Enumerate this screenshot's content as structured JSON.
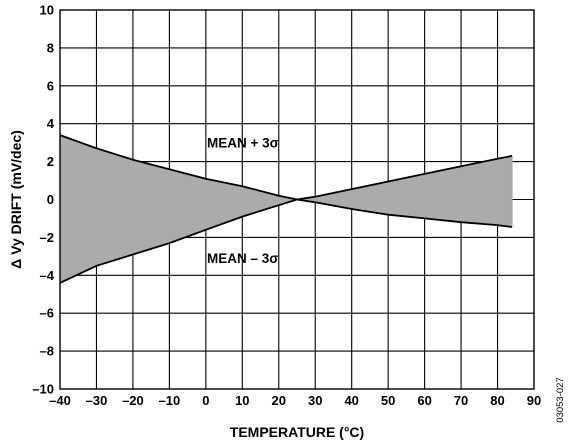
{
  "chart_data": {
    "type": "area",
    "xlabel": "TEMPERATURE (°C)",
    "ylabel": "Δ Vy DRIFT (mV/dec)",
    "xlim": [
      -40,
      90
    ],
    "ylim": [
      -10,
      10
    ],
    "xticks": [
      -40,
      -30,
      -20,
      -10,
      0,
      10,
      20,
      30,
      40,
      50,
      60,
      70,
      80,
      90
    ],
    "yticks": [
      -10,
      -8,
      -6,
      -4,
      -2,
      0,
      2,
      4,
      6,
      8,
      10
    ],
    "xtick_labels": [
      "–40",
      "–30",
      "–20",
      "–10",
      "0",
      "10",
      "20",
      "30",
      "40",
      "50",
      "60",
      "70",
      "80",
      "90"
    ],
    "ytick_labels": [
      "–10",
      "–8",
      "–6",
      "–4",
      "–2",
      "0",
      "2",
      "4",
      "6",
      "8",
      "10"
    ],
    "grid": true,
    "fill_color": "#ababab",
    "series": [
      {
        "name": "MEAN + 3σ",
        "x": [
          -40,
          -30,
          -20,
          -10,
          0,
          10,
          20,
          25,
          30,
          40,
          50,
          60,
          70,
          80,
          84
        ],
        "y": [
          3.4,
          2.7,
          2.1,
          1.6,
          1.1,
          0.7,
          0.2,
          0.0,
          0.15,
          0.55,
          0.95,
          1.35,
          1.75,
          2.15,
          2.3
        ]
      },
      {
        "name": "MEAN – 3σ",
        "x": [
          -40,
          -30,
          -20,
          -10,
          0,
          10,
          20,
          25,
          30,
          40,
          50,
          60,
          70,
          80,
          84
        ],
        "y": [
          -4.4,
          -3.5,
          -2.9,
          -2.3,
          -1.6,
          -0.9,
          -0.3,
          0.0,
          -0.15,
          -0.5,
          -0.8,
          -1.0,
          -1.2,
          -1.35,
          -1.45
        ]
      }
    ],
    "annotations": [
      {
        "text": "MEAN + 3σ",
        "x": 8,
        "y": 3.0
      },
      {
        "text": "MEAN – 3σ",
        "x": 8,
        "y": -3.1
      }
    ],
    "figure_id": "03053-027"
  }
}
